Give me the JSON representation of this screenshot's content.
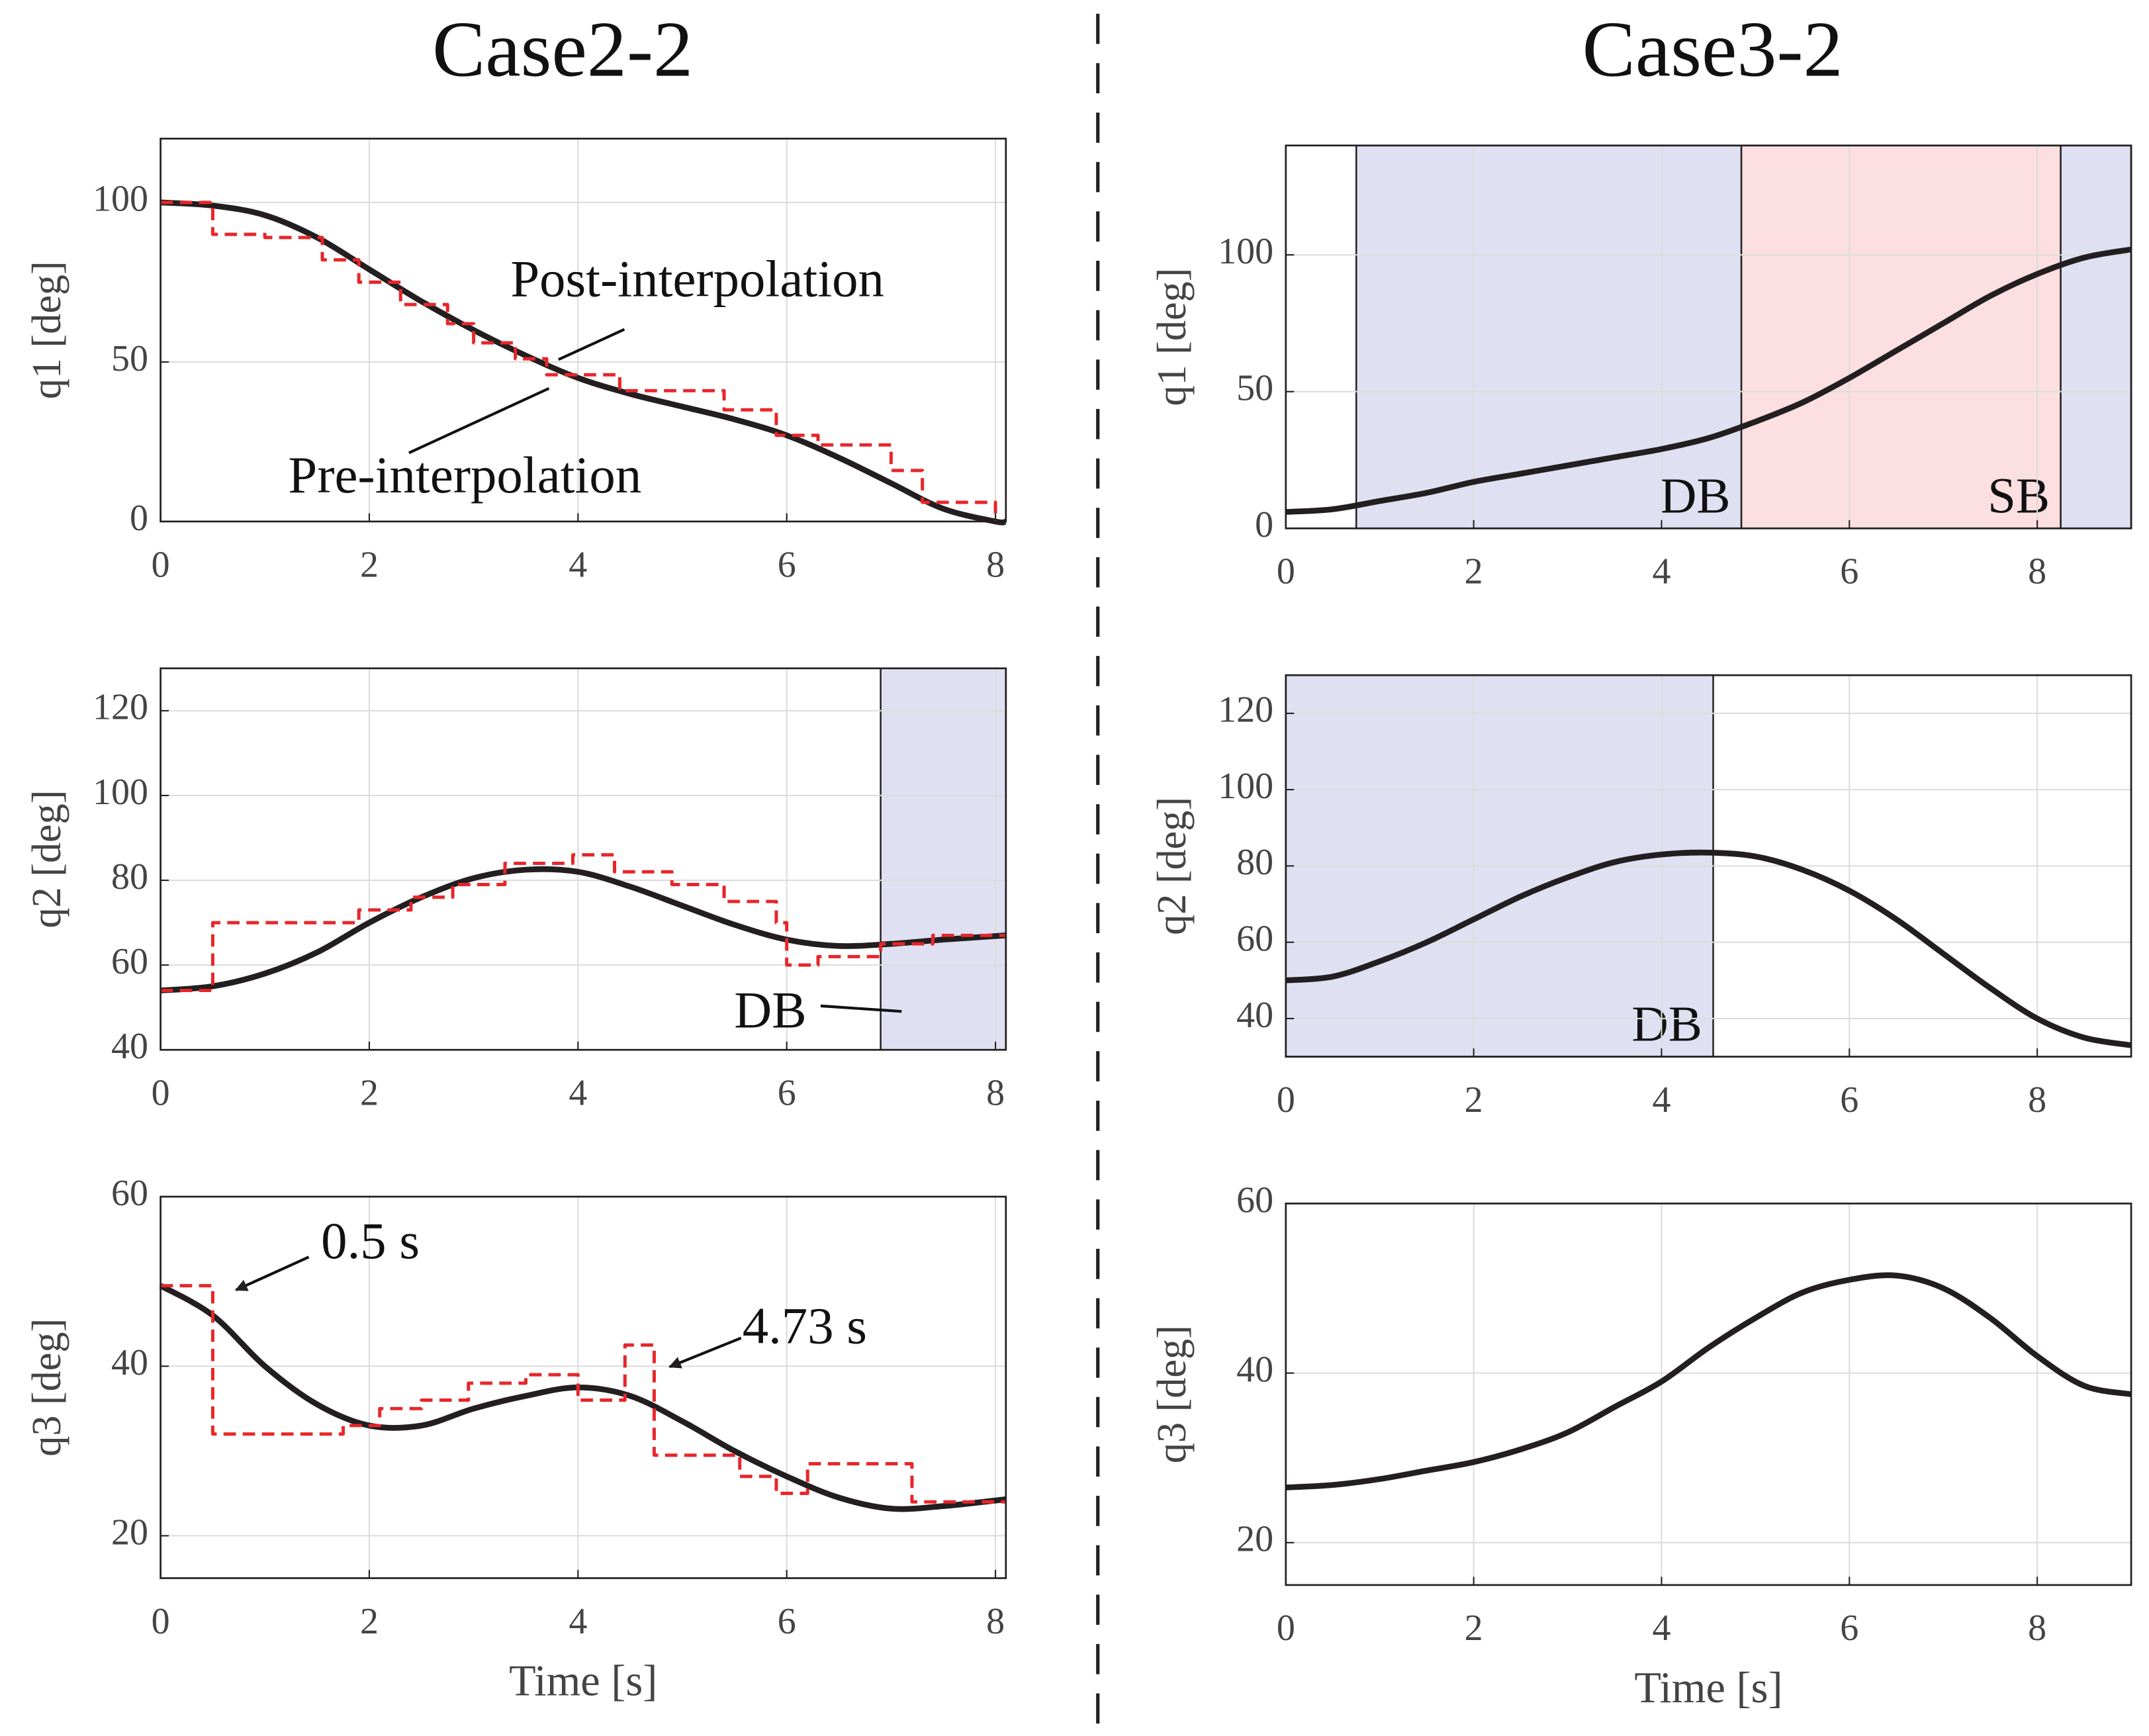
{
  "chart_data": [
    {
      "type": "line",
      "title": "Case2-2",
      "ylabel": "q1 [deg]",
      "xlim": [
        0,
        8.1
      ],
      "ylim": [
        0,
        120
      ],
      "xticks": [
        0,
        2,
        4,
        6,
        8
      ],
      "yticks": [
        0,
        50,
        100
      ],
      "grid": true,
      "series": [
        {
          "color": "#231f20",
          "x": [
            0,
            0.5,
            1,
            1.5,
            2,
            2.5,
            3,
            3.5,
            4,
            4.5,
            5,
            5.5,
            6,
            6.5,
            7,
            7.5,
            8,
            8.1
          ],
          "values": [
            100,
            99,
            96,
            89,
            79,
            69,
            60,
            52,
            45,
            40,
            36,
            32,
            27,
            20,
            12,
            4,
            0,
            0
          ]
        },
        {
          "color": "#e8262a",
          "dash": true,
          "step": true,
          "x": [
            0,
            0.5,
            1.0,
            1.55,
            1.9,
            2.3,
            2.75,
            3.0,
            3.4,
            3.7,
            4.4,
            5.4,
            5.9,
            6.3,
            7.0,
            7.3,
            8.0
          ],
          "values": [
            100,
            90,
            89,
            82,
            75,
            68,
            62,
            56,
            51,
            46,
            41,
            35,
            27,
            24,
            16,
            6,
            0
          ]
        }
      ],
      "annotations": [
        "Post-interpolation",
        "Pre-interpolation"
      ]
    },
    {
      "type": "line",
      "ylabel": "q2 [deg]",
      "xlim": [
        0,
        8.1
      ],
      "ylim": [
        40,
        130
      ],
      "xticks": [
        0,
        2,
        4,
        6,
        8
      ],
      "yticks": [
        40,
        60,
        80,
        100,
        120
      ],
      "grid": true,
      "regions": [
        {
          "start": 6.9,
          "end": 8.1,
          "color": "#dfe1f2"
        }
      ],
      "series": [
        {
          "color": "#231f20",
          "x": [
            0,
            0.5,
            1,
            1.5,
            2,
            2.5,
            3,
            3.5,
            4,
            4.5,
            5,
            5.5,
            6,
            6.5,
            7,
            7.5,
            8.1
          ],
          "values": [
            54,
            55,
            58,
            63,
            70,
            76,
            80.5,
            82.5,
            82,
            78.5,
            74,
            69.5,
            66,
            64.5,
            65,
            66,
            67
          ]
        },
        {
          "color": "#e8262a",
          "dash": true,
          "step": true,
          "x": [
            0,
            0.5,
            1.9,
            2.4,
            2.8,
            3.3,
            3.95,
            4.35,
            4.9,
            5.4,
            5.9,
            6.0,
            6.3,
            6.9,
            7.4,
            8.1
          ],
          "values": [
            54,
            70,
            73,
            76,
            79,
            84,
            86,
            82,
            79,
            75,
            70,
            60,
            62,
            65,
            67,
            67
          ]
        }
      ],
      "annotations": [
        "DB"
      ]
    },
    {
      "type": "line",
      "ylabel": "q3 [deg]",
      "xlabel": "Time [s]",
      "xlim": [
        0,
        8.1
      ],
      "ylim": [
        15,
        60
      ],
      "xticks": [
        0,
        2,
        4,
        6,
        8
      ],
      "yticks": [
        20,
        40,
        60
      ],
      "grid": true,
      "series": [
        {
          "color": "#231f20",
          "x": [
            0,
            0.5,
            1,
            1.5,
            2,
            2.5,
            3,
            3.5,
            4,
            4.5,
            5,
            5.5,
            6,
            6.5,
            7,
            7.5,
            8.1
          ],
          "values": [
            49.5,
            46,
            40,
            35.5,
            33,
            33,
            35,
            36.5,
            37.5,
            36.5,
            33.5,
            30,
            27,
            24.5,
            23.2,
            23.5,
            24.3
          ]
        },
        {
          "color": "#e8262a",
          "dash": true,
          "step": true,
          "x": [
            0,
            0.5,
            1.75,
            2.1,
            2.5,
            2.95,
            3.5,
            4.0,
            4.45,
            4.73,
            5.55,
            5.9,
            6.2,
            7.2,
            8.1
          ],
          "values": [
            49.5,
            32,
            33,
            35,
            36,
            38,
            39,
            36,
            42.5,
            29.5,
            27,
            25,
            28.5,
            24,
            24
          ]
        }
      ],
      "annotations": [
        "0.5 s",
        "4.73 s"
      ]
    },
    {
      "type": "line",
      "title": "Case3-2",
      "ylabel": "q1 [deg]",
      "xlim": [
        0,
        9
      ],
      "ylim": [
        0,
        140
      ],
      "xticks": [
        0,
        2,
        4,
        6,
        8
      ],
      "yticks": [
        0,
        50,
        100
      ],
      "grid": true,
      "regions": [
        {
          "start": 0.75,
          "end": 4.85,
          "color": "#dfe1f2",
          "label": "DB"
        },
        {
          "start": 4.85,
          "end": 8.25,
          "color": "#fcdfe1",
          "label": "SB"
        },
        {
          "start": 8.25,
          "end": 9,
          "color": "#dfe1f2"
        }
      ],
      "series": [
        {
          "color": "#231f20",
          "x": [
            0,
            0.5,
            1,
            1.5,
            2,
            2.5,
            3,
            3.5,
            4,
            4.5,
            5,
            5.5,
            6,
            6.5,
            7,
            7.5,
            8,
            8.5,
            9
          ],
          "values": [
            6,
            7,
            10,
            13,
            17,
            20,
            23,
            26,
            29,
            33,
            39,
            46,
            55,
            65,
            75,
            85,
            93,
            99,
            102
          ]
        }
      ]
    },
    {
      "type": "line",
      "ylabel": "q2 [deg]",
      "xlim": [
        0,
        9
      ],
      "ylim": [
        30,
        130
      ],
      "xticks": [
        0,
        2,
        4,
        6,
        8
      ],
      "yticks": [
        40,
        60,
        80,
        100,
        120
      ],
      "grid": true,
      "regions": [
        {
          "start": 0,
          "end": 4.55,
          "color": "#dfe1f2",
          "label": "DB"
        }
      ],
      "series": [
        {
          "color": "#231f20",
          "x": [
            0,
            0.5,
            1,
            1.5,
            2,
            2.5,
            3,
            3.5,
            4,
            4.5,
            5,
            5.5,
            6,
            6.5,
            7,
            7.5,
            8,
            8.5,
            9
          ],
          "values": [
            50,
            51,
            55,
            60,
            66,
            72,
            77,
            81,
            83,
            83.5,
            82.5,
            79,
            73.5,
            66,
            57,
            48,
            40,
            35,
            33
          ]
        }
      ]
    },
    {
      "type": "line",
      "ylabel": "q3 [deg]",
      "xlabel": "Time [s]",
      "xlim": [
        0,
        9
      ],
      "ylim": [
        15,
        60
      ],
      "xticks": [
        0,
        2,
        4,
        6,
        8
      ],
      "yticks": [
        20,
        40,
        60
      ],
      "grid": true,
      "series": [
        {
          "color": "#231f20",
          "x": [
            0,
            0.5,
            1,
            1.5,
            2,
            2.5,
            3,
            3.5,
            4,
            4.5,
            5,
            5.5,
            6,
            6.5,
            7,
            7.5,
            8,
            8.5,
            9
          ],
          "values": [
            26.5,
            26.8,
            27.5,
            28.5,
            29.5,
            31,
            33,
            36,
            39,
            43,
            46.5,
            49.5,
            51,
            51.5,
            50,
            46.5,
            42,
            38.5,
            37.5
          ]
        }
      ]
    }
  ]
}
